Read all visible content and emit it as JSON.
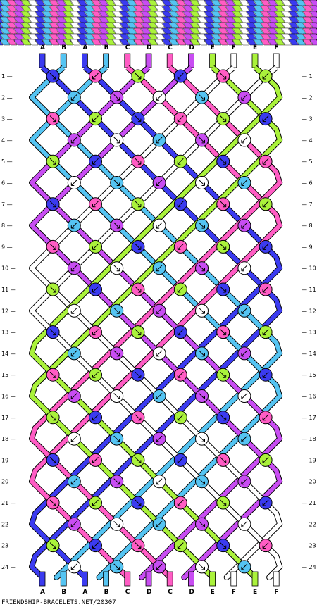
{
  "palette": {
    "A": "#3b3bf0",
    "B": "#55c4f2",
    "C": "#ff5cc4",
    "D": "#c84df2",
    "E": "#aaf23b",
    "F": "#ffffff"
  },
  "strands_top": [
    "A",
    "B",
    "A",
    "B",
    "C",
    "D",
    "C",
    "D",
    "E",
    "F",
    "E",
    "F"
  ],
  "strands_bottom": [
    "A",
    "B",
    "A",
    "B",
    "C",
    "D",
    "C",
    "D",
    "E",
    "F",
    "E",
    "F"
  ],
  "rows": [
    "1",
    "2",
    "3",
    "4",
    "5",
    "6",
    "7",
    "8",
    "9",
    "10",
    "11",
    "12",
    "13",
    "14",
    "15",
    "16",
    "17",
    "18",
    "19",
    "20",
    "21",
    "22",
    "23",
    "24"
  ],
  "footer": "FRIENDSHIP-BRACELETS.NET/20307",
  "header_banner": {
    "description": "woven preview band",
    "pattern_colors": [
      "A",
      "B",
      "C",
      "D",
      "E",
      "F"
    ]
  }
}
